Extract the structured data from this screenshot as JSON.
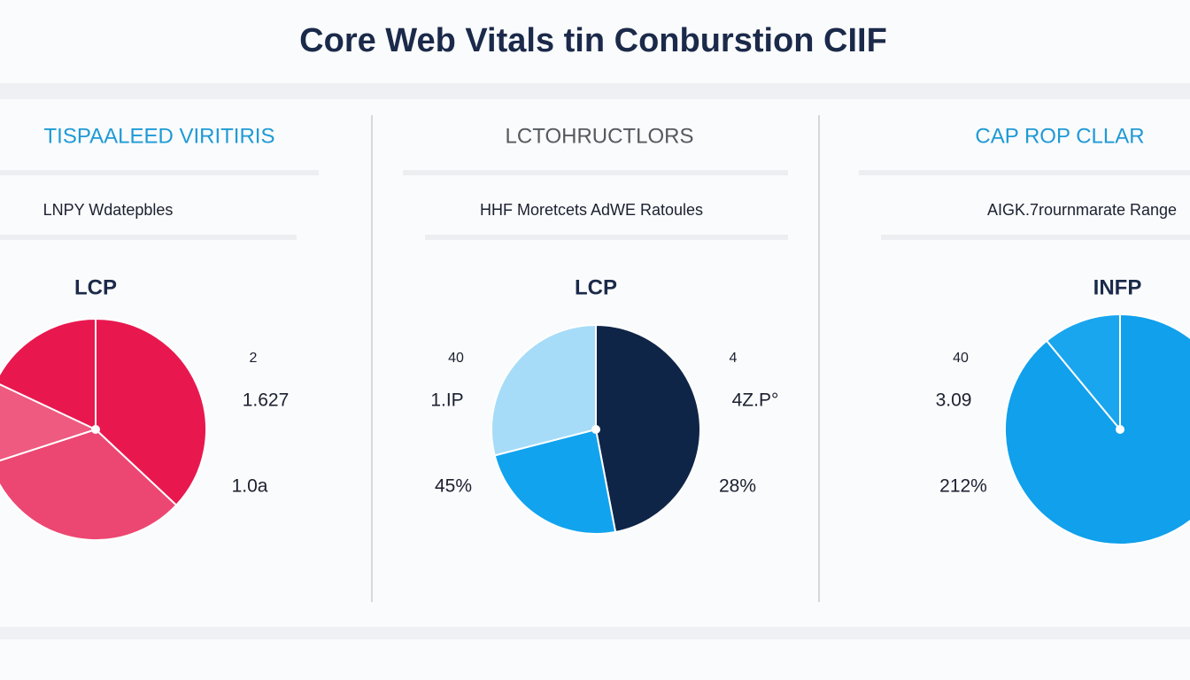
{
  "title": "Core Web Vitals tin Conburstion CIIF",
  "chart_data": [
    {
      "type": "pie",
      "panel_title": "TISPAALEED VIRITIRIS",
      "panel_title_color": "#1f9ad6",
      "subtitle": "LNPY Wdatepbles",
      "title": "LCP",
      "values": [
        37,
        33,
        12,
        18
      ],
      "colors": [
        "#e8184f",
        "#ec4772",
        "#ee5a80",
        "#e8184f"
      ],
      "annotations": [
        "2",
        "1.627",
        "1.0a"
      ]
    },
    {
      "type": "pie",
      "panel_title": "LCTOHRUCTLORS",
      "panel_title_color": "#555a60",
      "subtitle": "HHF Moretcets AdWE Ratoules",
      "title": "LCP",
      "values": [
        47,
        24,
        29
      ],
      "colors": [
        "#0f2548",
        "#12a3ee",
        "#a6dcf8"
      ],
      "annotations": [
        "40",
        "1.IP",
        "45%",
        "4",
        "4Z.P°",
        "28%"
      ]
    },
    {
      "type": "pie",
      "panel_title": "CAP ROP CLLAR",
      "panel_title_color": "#1f9ad6",
      "subtitle": "AIGK.7rournmarate Range",
      "title": "INFP",
      "values": [
        89,
        11
      ],
      "colors": [
        "#10a0ec",
        "#1aa6ee"
      ],
      "annotations": [
        "40",
        "3.09",
        "212%"
      ]
    }
  ]
}
